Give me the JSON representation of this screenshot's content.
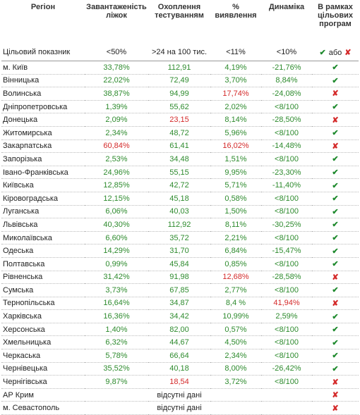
{
  "table": {
    "header": [
      "Регіон",
      "Завантаженість\nліжок",
      "Охоплення\nтестуванням",
      "%\nвиявлення",
      "Динаміка",
      "В рамках\nцільових\nпрограм"
    ],
    "target": {
      "label": "Цільовий показник",
      "values": [
        "<50%",
        ">24 на 100 тис.",
        "<11%",
        "<10%"
      ],
      "status": [
        "✔",
        "або",
        "✘"
      ]
    },
    "rows": [
      {
        "cells": [
          "м. Київ",
          "33,78%",
          "112,91",
          "4,19%",
          "-21,76%"
        ],
        "status": "✔",
        "red_cells": []
      },
      {
        "cells": [
          "Вінницька",
          "22,02%",
          "72,49",
          "3,70%",
          "8,84%"
        ],
        "status": "✔",
        "red_cells": []
      },
      {
        "cells": [
          "Волинська",
          "38,87%",
          "94,99",
          "17,74%",
          "-24,08%"
        ],
        "status": "✘",
        "red_cells": [
          3
        ]
      },
      {
        "cells": [
          "Дніпропетровська",
          "1,39%",
          "55,62",
          "2,02%",
          "<8/100"
        ],
        "status": "✔",
        "red_cells": []
      },
      {
        "cells": [
          "Донецька",
          "2,09%",
          "23,15",
          "8,14%",
          "-28,50%"
        ],
        "status": "✘",
        "red_cells": [
          2
        ]
      },
      {
        "cells": [
          "Житомирська",
          "2,34%",
          "48,72",
          "5,96%",
          "<8/100"
        ],
        "status": "✔",
        "red_cells": []
      },
      {
        "cells": [
          "Закарпатська",
          "60,84%",
          "61,41",
          "16,02%",
          "-14,48%"
        ],
        "status": "✘",
        "red_cells": [
          1,
          3
        ]
      },
      {
        "cells": [
          "Запорізька",
          "2,53%",
          "34,48",
          "1,51%",
          "<8/100"
        ],
        "status": "✔",
        "red_cells": []
      },
      {
        "cells": [
          "Івано-Франківська",
          "24,96%",
          "55,15",
          "9,95%",
          "-23,30%"
        ],
        "status": "✔",
        "red_cells": []
      },
      {
        "cells": [
          "Київська",
          "12,85%",
          "42,72",
          "5,71%",
          "-11,40%"
        ],
        "status": "✔",
        "red_cells": []
      },
      {
        "cells": [
          "Кіровоградська",
          "12,15%",
          "45,18",
          "0,58%",
          "<8/100"
        ],
        "status": "✔",
        "red_cells": []
      },
      {
        "cells": [
          "Луганська",
          "6,06%",
          "40,03",
          "1,50%",
          "<8/100"
        ],
        "status": "✔",
        "red_cells": []
      },
      {
        "cells": [
          "Львівська",
          "40,30%",
          "112,92",
          "8,11%",
          "-30,25%"
        ],
        "status": "✔",
        "red_cells": []
      },
      {
        "cells": [
          "Миколаївська",
          "6,60%",
          "35,72",
          "2,21%",
          "<8/100"
        ],
        "status": "✔",
        "red_cells": []
      },
      {
        "cells": [
          "Одеська",
          "14,29%",
          "31,70",
          "6,84%",
          "-15,47%"
        ],
        "status": "✔",
        "red_cells": []
      },
      {
        "cells": [
          "Полтавська",
          "0,99%",
          "45,84",
          "0,85%",
          "<8/100"
        ],
        "status": "✔",
        "red_cells": []
      },
      {
        "cells": [
          "Рівненська",
          "31,42%",
          "91,98",
          "12,68%",
          "-28,58%"
        ],
        "status": "✘",
        "red_cells": [
          3
        ]
      },
      {
        "cells": [
          "Сумська",
          "3,73%",
          "67,85",
          "2,77%",
          "<8/100"
        ],
        "status": "✔",
        "red_cells": []
      },
      {
        "cells": [
          "Тернопільська",
          "16,64%",
          "34,87",
          "8,4 %",
          "41,94%"
        ],
        "status": "✘",
        "red_cells": [
          4
        ]
      },
      {
        "cells": [
          "Харківська",
          "16,36%",
          "34,42",
          "10,99%",
          "2,59%"
        ],
        "status": "✔",
        "red_cells": []
      },
      {
        "cells": [
          "Херсонська",
          "1,40%",
          "82,00",
          "0,57%",
          "<8/100"
        ],
        "status": "✔",
        "red_cells": []
      },
      {
        "cells": [
          "Хмельницька",
          "6,32%",
          "44,67",
          "4,50%",
          "<8/100"
        ],
        "status": "✔",
        "red_cells": []
      },
      {
        "cells": [
          "Черкаська",
          "5,78%",
          "66,64",
          "2,34%",
          "<8/100"
        ],
        "status": "✔",
        "red_cells": []
      },
      {
        "cells": [
          "Чернівецька",
          "35,52%",
          "40,18",
          "8,00%",
          "-26,42%"
        ],
        "status": "✔",
        "red_cells": []
      },
      {
        "cells": [
          "Чернігівська",
          "9,87%",
          "18,54",
          "3,72%",
          "<8/100"
        ],
        "status": "✘",
        "red_cells": [
          2
        ]
      },
      {
        "cells": [
          "АР Крим"
        ],
        "no_data": "відсутні дані",
        "status": "✘",
        "red_cells": []
      },
      {
        "cells": [
          "м. Севастополь"
        ],
        "no_data": "відсутні дані",
        "status": "✘",
        "red_cells": []
      }
    ]
  }
}
